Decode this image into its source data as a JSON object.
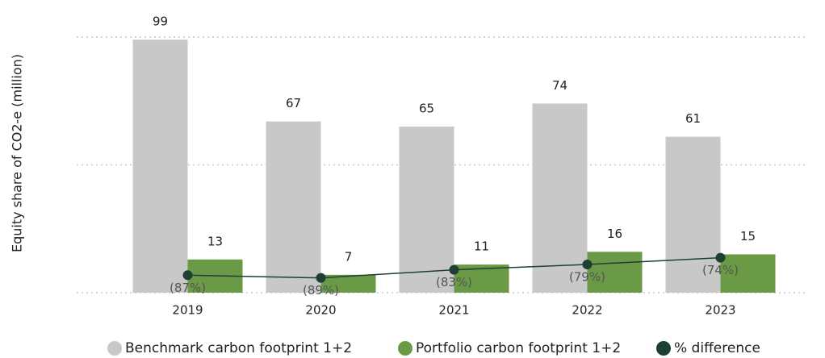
{
  "chart_data": {
    "type": "bar",
    "categories": [
      "2019",
      "2020",
      "2021",
      "2022",
      "2023"
    ],
    "y_label": "Equity share of CO2-e (million)",
    "series": [
      {
        "name": "Benchmark carbon footprint 1+2",
        "color": "#c8c8c8",
        "values": [
          99,
          67,
          65,
          74,
          61
        ]
      },
      {
        "name": "Portfolio carbon footprint 1+2",
        "color": "#6a9a46",
        "values": [
          13,
          7,
          11,
          16,
          15
        ]
      },
      {
        "name": "% difference",
        "color": "#1e4032",
        "type": "line",
        "axis": "y2",
        "values": [
          -87,
          -89,
          -83,
          -79,
          -74
        ],
        "value_labels": [
          "(87%)",
          "(89%)",
          "(83%)",
          "(79%)",
          "(74%)"
        ]
      }
    ],
    "ylim": [
      0,
      100
    ],
    "yticks": [
      0,
      50,
      100
    ],
    "grid": true,
    "y2lim": [
      -100,
      90
    ]
  }
}
